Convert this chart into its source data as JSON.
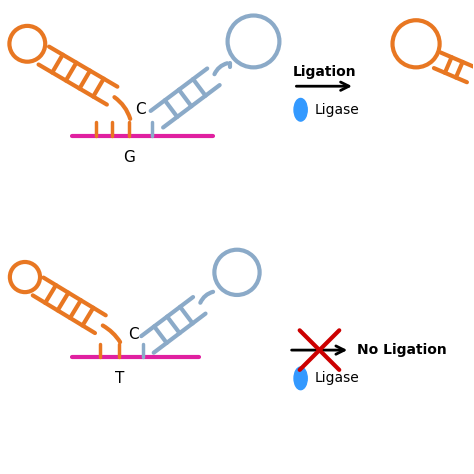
{
  "orange_color": "#E87722",
  "blue_color": "#8BAAC8",
  "magenta_color": "#E020A0",
  "red_color": "#CC0000",
  "black_color": "#000000",
  "white_color": "#FFFFFF",
  "cyan_color": "#3399FF",
  "bg_color": "#FFFFFF",
  "ligation_label": "Ligation",
  "no_ligation_label": "No Ligation",
  "ligase_label": "Ligase",
  "C_label": "C",
  "G_label": "G",
  "T_label": "T",
  "lw_thick": 3.0,
  "lw_ladder": 2.5
}
